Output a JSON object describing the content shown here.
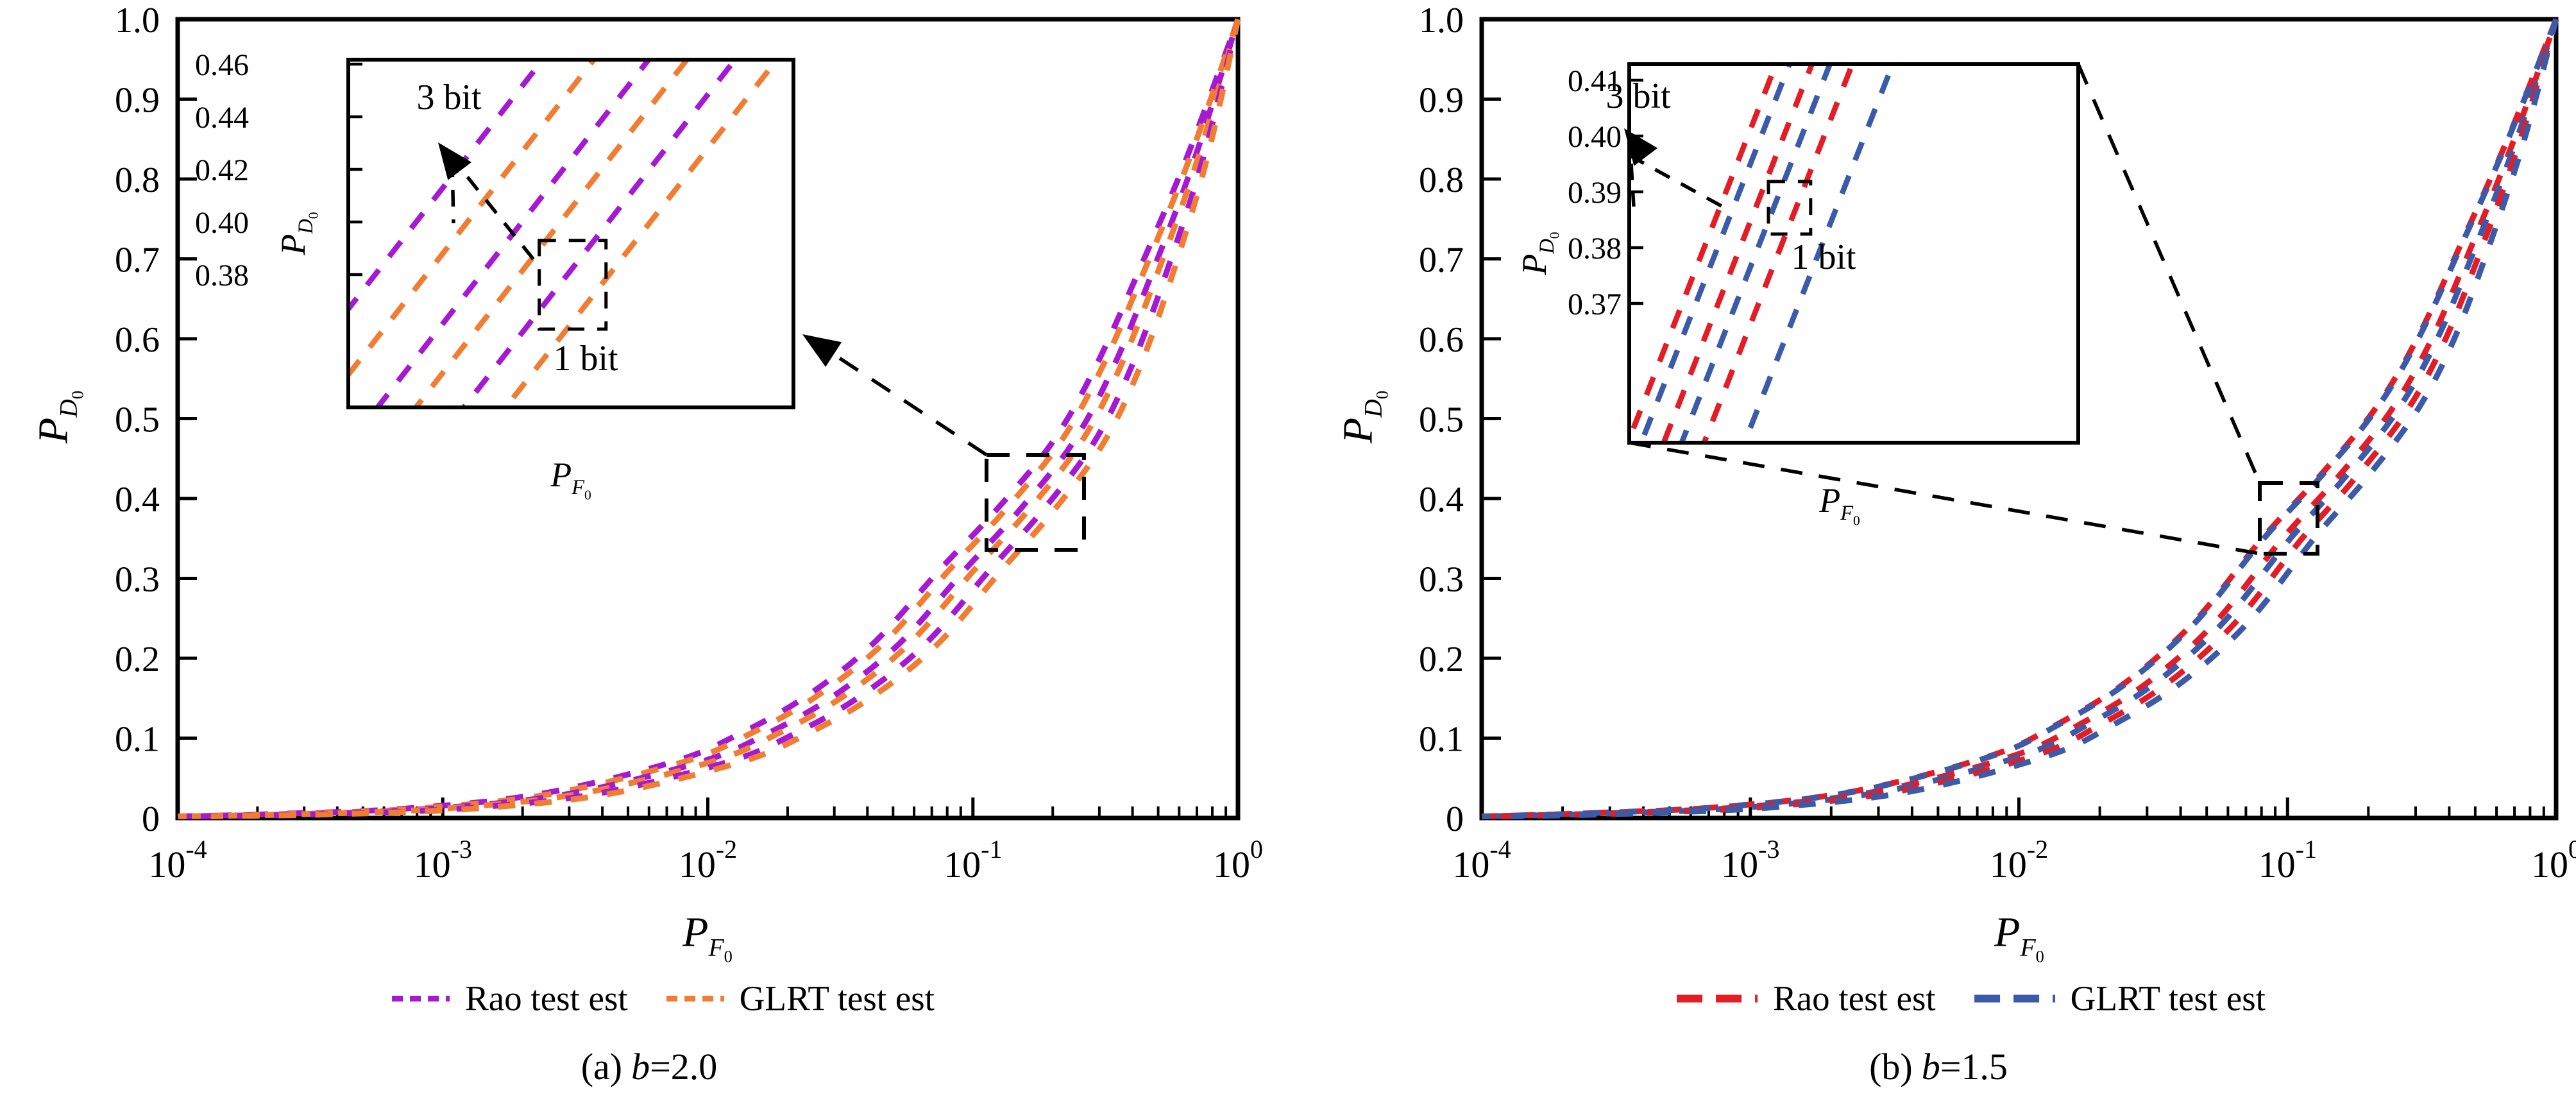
{
  "figure": {
    "background": "#ffffff",
    "panels": [
      {
        "id": "a",
        "caption": {
          "prefix": "(a)",
          "var": "b",
          "eq": "=2.0"
        },
        "xlabel": {
          "main": "P",
          "sub": "F",
          "subsub": "0"
        },
        "ylabel": {
          "main": "P",
          "sub": "D",
          "subsub": "0"
        },
        "inset_xlabel": {
          "main": "P",
          "sub": "F",
          "subsub": "0"
        },
        "inset_ylabel": {
          "main": "P",
          "sub": "D",
          "subsub": "0"
        },
        "legend": [
          {
            "label": "Rao test est",
            "color": "#A519D2"
          },
          {
            "label": "GLRT test est",
            "color": "#F07D32"
          }
        ]
      },
      {
        "id": "b",
        "caption": {
          "prefix": "(b)",
          "var": "b",
          "eq": "=1.5"
        },
        "xlabel": {
          "main": "P",
          "sub": "F",
          "subsub": "0"
        },
        "ylabel": {
          "main": "P",
          "sub": "D",
          "subsub": "0"
        },
        "inset_xlabel": {
          "main": "P",
          "sub": "F",
          "subsub": "0"
        },
        "inset_ylabel": {
          "main": "P",
          "sub": "D",
          "subsub": "0"
        },
        "legend": [
          {
            "label": "Rao test est",
            "color": "#E31C25"
          },
          {
            "label": "GLRT test est",
            "color": "#3C5AAA"
          }
        ]
      }
    ]
  },
  "chart_data": [
    {
      "type": "line",
      "panel": "a",
      "title": "(a) b=2.0",
      "xlabel": "P_{F_0}",
      "ylabel": "P_{D_0}",
      "xscale": "log",
      "xlim": [
        0.0001,
        1
      ],
      "ylim": [
        0,
        1
      ],
      "grid": false,
      "legend_position": "below",
      "x_tick_labels": [
        {
          "base": "10",
          "exp": "-4"
        },
        {
          "base": "10",
          "exp": "-3"
        },
        {
          "base": "10",
          "exp": "-2"
        },
        {
          "base": "10",
          "exp": "-1"
        },
        {
          "base": "10",
          "exp": "0"
        }
      ],
      "y_tick_labels": [
        "0",
        "0.1",
        "0.2",
        "0.3",
        "0.4",
        "0.5",
        "0.6",
        "0.7",
        "0.8",
        "0.9",
        "1.0"
      ],
      "base_curve": {
        "logx": [
          -4,
          -3.5,
          -3,
          -2.5,
          -2,
          -1.75,
          -1.5,
          -1.25,
          -1,
          -0.8,
          -0.6,
          -0.45,
          -0.3,
          -0.15,
          0
        ],
        "pd": [
          0.002,
          0.005,
          0.012,
          0.03,
          0.07,
          0.105,
          0.152,
          0.218,
          0.312,
          0.385,
          0.47,
          0.565,
          0.69,
          0.83,
          1.0
        ]
      },
      "series": [
        {
          "name": "Rao test est (3 bit)",
          "color": "#A519D2",
          "dashed": true,
          "logx_offset": -0.135
        },
        {
          "name": "GLRT test est (3 bit)",
          "color": "#F07D32",
          "dashed": true,
          "logx_offset": -0.095
        },
        {
          "name": "Rao test est (2 bit)",
          "color": "#A519D2",
          "dashed": true,
          "logx_offset": -0.03
        },
        {
          "name": "GLRT test est (2 bit)",
          "color": "#F07D32",
          "dashed": true,
          "logx_offset": 0.01
        },
        {
          "name": "Rao test est (1 bit)",
          "color": "#A519D2",
          "dashed": true,
          "logx_offset": 0.075
        },
        {
          "name": "GLRT test est (1 bit)",
          "color": "#F07D32",
          "dashed": true,
          "logx_offset": 0.125
        }
      ],
      "inset": {
        "y_tick_labels": [
          "0.46",
          "0.44",
          "0.42",
          "0.40",
          "0.38"
        ],
        "xlabel": "P_{F_0}",
        "ylabel": "P_{D_0}",
        "annotation_3bit": "3 bit",
        "annotation_1bit": "1 bit",
        "slope_frac": 0.609,
        "lines": [
          {
            "color": "#A519D2",
            "bottom_frac": -0.206
          },
          {
            "color": "#F07D32",
            "bottom_frac": -0.091
          },
          {
            "color": "#A519D2",
            "bottom_frac": 0.032
          },
          {
            "color": "#F07D32",
            "bottom_frac": 0.118
          },
          {
            "color": "#A519D2",
            "bottom_frac": 0.226
          },
          {
            "color": "#F07D32",
            "bottom_frac": 0.32
          }
        ],
        "square_frac": {
          "x": 0.429,
          "y": 0.52,
          "w": 0.15,
          "h": 0.255
        }
      }
    },
    {
      "type": "line",
      "panel": "b",
      "title": "(b) b=1.5",
      "xlabel": "P_{F_0}",
      "ylabel": "P_{D_0}",
      "xscale": "log",
      "xlim": [
        0.0001,
        1
      ],
      "ylim": [
        0,
        1
      ],
      "grid": false,
      "legend_position": "below",
      "x_tick_labels": [
        {
          "base": "10",
          "exp": "-4"
        },
        {
          "base": "10",
          "exp": "-3"
        },
        {
          "base": "10",
          "exp": "-2"
        },
        {
          "base": "10",
          "exp": "-1"
        },
        {
          "base": "10",
          "exp": "0"
        }
      ],
      "y_tick_labels": [
        "0",
        "0.1",
        "0.2",
        "0.3",
        "0.4",
        "0.5",
        "0.6",
        "0.7",
        "0.8",
        "0.9",
        "1.0"
      ],
      "base_curve": {
        "logx": [
          -4,
          -3.5,
          -3,
          -2.5,
          -2,
          -1.75,
          -1.5,
          -1.25,
          -1,
          -0.8,
          -0.6,
          -0.45,
          -0.3,
          -0.15,
          0
        ],
        "pd": [
          0.002,
          0.006,
          0.014,
          0.034,
          0.078,
          0.118,
          0.17,
          0.245,
          0.35,
          0.425,
          0.51,
          0.6,
          0.72,
          0.85,
          1.0
        ]
      },
      "series": [
        {
          "name": "Rao test est (3 bit)",
          "color": "#E31C25",
          "dashed": true,
          "logx_offset": -0.105
        },
        {
          "name": "GLRT test est (3 bit)",
          "color": "#3C5AAA",
          "dashed": true,
          "logx_offset": -0.098
        },
        {
          "name": "Rao test est (2 bit)",
          "color": "#E31C25",
          "dashed": true,
          "logx_offset": -0.02
        },
        {
          "name": "GLRT test est (2 bit)",
          "color": "#3C5AAA",
          "dashed": true,
          "logx_offset": 0.012
        },
        {
          "name": "Rao test est (1 bit)",
          "color": "#E31C25",
          "dashed": true,
          "logx_offset": 0.06
        },
        {
          "name": "GLRT test est (1 bit)",
          "color": "#3C5AAA",
          "dashed": true,
          "logx_offset": 0.11
        }
      ],
      "inset": {
        "y_tick_labels": [
          "0.41",
          "0.40",
          "0.39",
          "0.38",
          "0.37"
        ],
        "xlabel": "P_{F_0}",
        "ylabel": "P_{D_0}",
        "annotation_3bit": "3 bit",
        "annotation_1bit": "1 bit",
        "slope_frac": 0.33,
        "lines": [
          {
            "color": "#E31C25",
            "bottom_frac": -0.02
          },
          {
            "color": "#3C5AAA",
            "bottom_frac": 0.01
          },
          {
            "color": "#E31C25",
            "bottom_frac": 0.06
          },
          {
            "color": "#3C5AAA",
            "bottom_frac": 0.1
          },
          {
            "color": "#E31C25",
            "bottom_frac": 0.15
          },
          {
            "color": "#3C5AAA",
            "bottom_frac": 0.24
          }
        ],
        "square_frac": {
          "x": 0.31,
          "y": 0.31,
          "w": 0.094,
          "h": 0.139
        }
      }
    }
  ]
}
